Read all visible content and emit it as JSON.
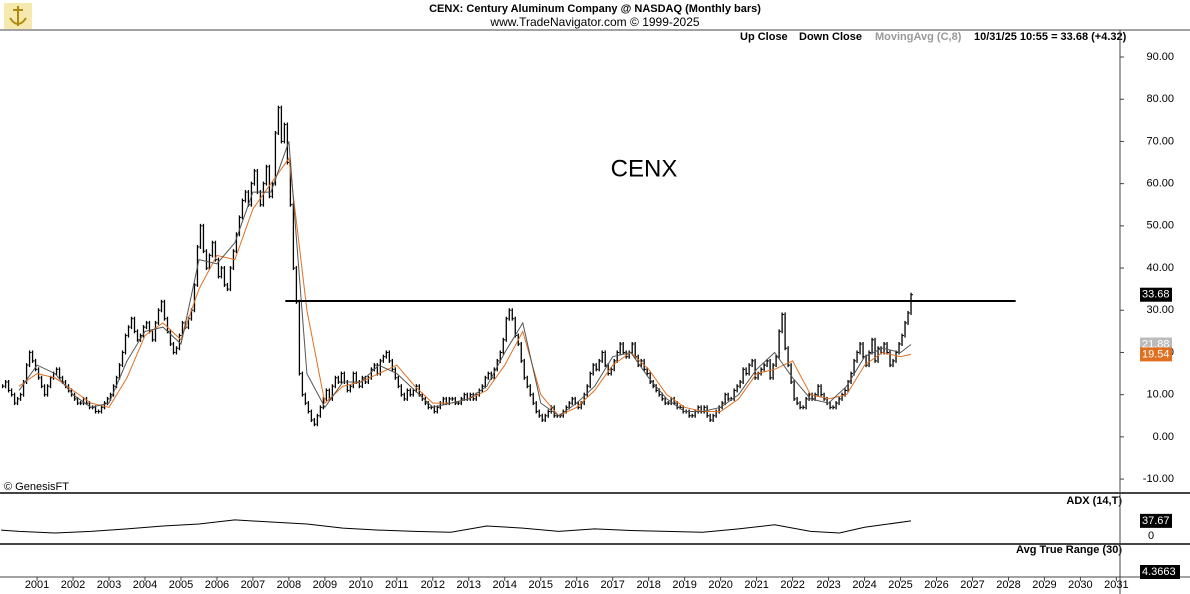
{
  "chart_data": {
    "type": "ohlc",
    "title": "CENX:  Century Aluminum Company @ NASDAQ  (Monthly bars)",
    "subtitle": "www.TradeNavigator.com © 1999-2025",
    "legend": [
      "Up Close",
      "Down Close",
      "MovingAvg (C,8)",
      "10/31/25 10:55 = 33.68 (+4.32)"
    ],
    "watermark": "CENX",
    "credit": "© GenesisFT",
    "xlim": [
      2000.47,
      2031.6
    ],
    "xticks": [
      {
        "value": 2001.5,
        "label": "2001"
      },
      {
        "value": 2002.5,
        "label": "2002"
      },
      {
        "value": 2003.5,
        "label": "2003"
      },
      {
        "value": 2004.5,
        "label": "2004"
      },
      {
        "value": 2005.5,
        "label": "2005"
      },
      {
        "value": 2006.5,
        "label": "2006"
      },
      {
        "value": 2007.5,
        "label": "2007"
      },
      {
        "value": 2008.5,
        "label": "2008"
      },
      {
        "value": 2009.5,
        "label": "2009"
      },
      {
        "value": 2010.5,
        "label": "2010"
      },
      {
        "value": 2011.5,
        "label": "2011"
      },
      {
        "value": 2012.5,
        "label": "2012"
      },
      {
        "value": 2013.5,
        "label": "2013"
      },
      {
        "value": 2014.5,
        "label": "2014"
      },
      {
        "value": 2015.5,
        "label": "2015"
      },
      {
        "value": 2016.5,
        "label": "2016"
      },
      {
        "value": 2017.5,
        "label": "2017"
      },
      {
        "value": 2018.5,
        "label": "2018"
      },
      {
        "value": 2019.5,
        "label": "2019"
      },
      {
        "value": 2020.5,
        "label": "2020"
      },
      {
        "value": 2021.5,
        "label": "2021"
      },
      {
        "value": 2022.5,
        "label": "2022"
      },
      {
        "value": 2023.5,
        "label": "2023"
      },
      {
        "value": 2024.5,
        "label": "2024"
      },
      {
        "value": 2025.5,
        "label": "2025"
      },
      {
        "value": 2026.5,
        "label": "2026"
      },
      {
        "value": 2027.5,
        "label": "2027"
      },
      {
        "value": 2028.5,
        "label": "2028"
      },
      {
        "value": 2029.5,
        "label": "2029"
      },
      {
        "value": 2030.5,
        "label": "2030"
      },
      {
        "value": 2031.5,
        "label": "2031"
      }
    ],
    "ylim": [
      -13.3,
      96.4
    ],
    "yticks": [
      {
        "value": -10,
        "label": "-10.00"
      },
      {
        "value": 0,
        "label": "0.00"
      },
      {
        "value": 10,
        "label": "10.00"
      },
      {
        "value": 20,
        "label": "20.00"
      },
      {
        "value": 30,
        "label": "30.00"
      },
      {
        "value": 40,
        "label": "40.00"
      },
      {
        "value": 50,
        "label": "50.00"
      },
      {
        "value": 60,
        "label": "60.00"
      },
      {
        "value": 70,
        "label": "70.00"
      },
      {
        "value": 80,
        "label": "80.00"
      },
      {
        "value": 90,
        "label": "90.00"
      }
    ],
    "price": {
      "color": "#000000",
      "years": [
        2000,
        2001,
        2002,
        2003,
        2004,
        2005,
        2006,
        2007,
        2008,
        2009,
        2010,
        2011,
        2012,
        2013,
        2014,
        2015,
        2016,
        2017,
        2018,
        2019,
        2020,
        2021,
        2022,
        2023,
        2024,
        2025
      ],
      "closes": [
        [
          null,
          null,
          null,
          null,
          null,
          null,
          12,
          13,
          11,
          10,
          8,
          9
        ],
        [
          10,
          13,
          17,
          20,
          18,
          16,
          14,
          12,
          10,
          12,
          14,
          15
        ],
        [
          16,
          14,
          13,
          12,
          11,
          10,
          9,
          8,
          8,
          9,
          8,
          7
        ],
        [
          7,
          6,
          6,
          7,
          8,
          9,
          10,
          12,
          14,
          17,
          20,
          24
        ],
        [
          26,
          28,
          25,
          23,
          24,
          26,
          27,
          25,
          23,
          27,
          30,
          32
        ],
        [
          28,
          25,
          22,
          20,
          21,
          24,
          27,
          26,
          28,
          30,
          36,
          45
        ],
        [
          50,
          44,
          40,
          43,
          46,
          42,
          38,
          40,
          36,
          35,
          40,
          44
        ],
        [
          48,
          52,
          56,
          58,
          55,
          60,
          63,
          58,
          55,
          60,
          64,
          57
        ],
        [
          60,
          72,
          78,
          70,
          74,
          65,
          55,
          40,
          32,
          15,
          10,
          8
        ],
        [
          6,
          4,
          3,
          5,
          7,
          9,
          11,
          9,
          12,
          14,
          13,
          15
        ],
        [
          13,
          11,
          12,
          15,
          13,
          12,
          14,
          13,
          14,
          16,
          17,
          15
        ],
        [
          18,
          19,
          20,
          18,
          16,
          14,
          12,
          10,
          9,
          11,
          10,
          11
        ],
        [
          12,
          10,
          9,
          8,
          7,
          7,
          6,
          7,
          8,
          9,
          8,
          9
        ],
        [
          9,
          8,
          8,
          9,
          10,
          9,
          10,
          9,
          10,
          11,
          12,
          14
        ],
        [
          15,
          14,
          16,
          18,
          20,
          23,
          28,
          30,
          28,
          24,
          22,
          18
        ],
        [
          14,
          12,
          10,
          8,
          6,
          5,
          4,
          5,
          6,
          7,
          5,
          5
        ],
        [
          5,
          6,
          7,
          8,
          9,
          8,
          7,
          8,
          10,
          12,
          15,
          17
        ],
        [
          16,
          18,
          20,
          17,
          15,
          16,
          18,
          20,
          22,
          20,
          19,
          20
        ],
        [
          22,
          19,
          17,
          18,
          16,
          15,
          13,
          12,
          11,
          10,
          9,
          8
        ],
        [
          8,
          9,
          8,
          7,
          7,
          6,
          6,
          5,
          5,
          6,
          7,
          6
        ],
        [
          7,
          5,
          4,
          5,
          6,
          7,
          8,
          10,
          9,
          9,
          11,
          12
        ],
        [
          13,
          16,
          15,
          17,
          18,
          14,
          15,
          16,
          17,
          18,
          14,
          17
        ],
        [
          19,
          25,
          29,
          21,
          17,
          13,
          9,
          8,
          7,
          7,
          9,
          10
        ],
        [
          9,
          10,
          12,
          10,
          9,
          8,
          7,
          7,
          8,
          9,
          10,
          11
        ],
        [
          13,
          15,
          18,
          20,
          22,
          19,
          17,
          20,
          23,
          18,
          21,
          20
        ],
        [
          22,
          20,
          17,
          18,
          20,
          22,
          24,
          27,
          29.36,
          33.68
        ]
      ]
    },
    "moving_averages": [
      {
        "color": "#e07020",
        "x": [
          2001,
          2001.5,
          2002,
          2002.5,
          2003,
          2003.5,
          2004,
          2004.5,
          2005,
          2005.5,
          2006,
          2006.5,
          2007,
          2007.5,
          2008,
          2008.5,
          2009,
          2009.5,
          2010,
          2010.5,
          2011,
          2011.5,
          2012,
          2012.5,
          2013,
          2013.5,
          2014,
          2014.5,
          2015,
          2015.5,
          2016,
          2016.5,
          2017,
          2017.5,
          2018,
          2018.5,
          2019,
          2019.5,
          2020,
          2020.5,
          2021,
          2021.5,
          2022,
          2022.5,
          2023,
          2023.5,
          2024,
          2024.5,
          2025,
          2025.5,
          2025.79
        ],
        "values": [
          12,
          15,
          14,
          11,
          8,
          7,
          14,
          24,
          27,
          23,
          35,
          43,
          42,
          54,
          60,
          66,
          30,
          8,
          12,
          13,
          15,
          17,
          12,
          8,
          8,
          9,
          11,
          17,
          25,
          10,
          5,
          7,
          11,
          17,
          20,
          16,
          10,
          7,
          6,
          6,
          9,
          15,
          16,
          18,
          10,
          9,
          10,
          17,
          20,
          19,
          19.54
        ]
      },
      {
        "color": "#555555",
        "x": [
          2001,
          2001.5,
          2002,
          2002.5,
          2003,
          2003.5,
          2004,
          2004.5,
          2005,
          2005.5,
          2006,
          2006.5,
          2007,
          2007.5,
          2008,
          2008.5,
          2009,
          2009.5,
          2010,
          2010.5,
          2011,
          2011.5,
          2012,
          2012.5,
          2013,
          2013.5,
          2014,
          2014.5,
          2015,
          2015.5,
          2016,
          2016.5,
          2017,
          2017.5,
          2018,
          2018.5,
          2019,
          2019.5,
          2020,
          2020.5,
          2021,
          2021.5,
          2022,
          2022.5,
          2023,
          2023.5,
          2024,
          2024.5,
          2025,
          2025.5,
          2025.79
        ],
        "values": [
          11,
          17,
          15,
          10,
          7,
          8,
          18,
          25,
          26,
          22,
          42,
          41,
          46,
          58,
          58,
          70,
          15,
          7,
          13,
          13,
          17,
          15,
          11,
          7,
          8,
          9,
          12,
          20,
          27,
          8,
          5,
          8,
          12,
          19,
          20,
          14,
          9,
          6,
          6,
          7,
          10,
          16,
          20,
          14,
          9,
          8,
          12,
          19,
          21,
          20,
          21.88
        ]
      }
    ],
    "resistance": {
      "x": [
        2008.4,
        2028.7
      ],
      "y": 32.2,
      "color": "#000000"
    },
    "adx": {
      "name": "ADX (14,T)",
      "ylim": [
        -16.5,
        101
      ],
      "yticks": [
        0
      ],
      "x": [
        2000.5,
        2001,
        2002,
        2003,
        2004,
        2005,
        2006,
        2007,
        2008,
        2009,
        2010,
        2011,
        2012,
        2013,
        2014,
        2015,
        2016,
        2017,
        2018,
        2019,
        2020,
        2021,
        2022,
        2023,
        2023.8,
        2024.5,
        2025.79
      ],
      "values": [
        15,
        12,
        8,
        12,
        18,
        25,
        30,
        40,
        35,
        30,
        20,
        15,
        12,
        10,
        25,
        20,
        12,
        18,
        14,
        12,
        10,
        18,
        28,
        12,
        8,
        22,
        37.67
      ]
    },
    "atr": {
      "name": "Avg True Range (30)",
      "last": 4.3663
    }
  }
}
